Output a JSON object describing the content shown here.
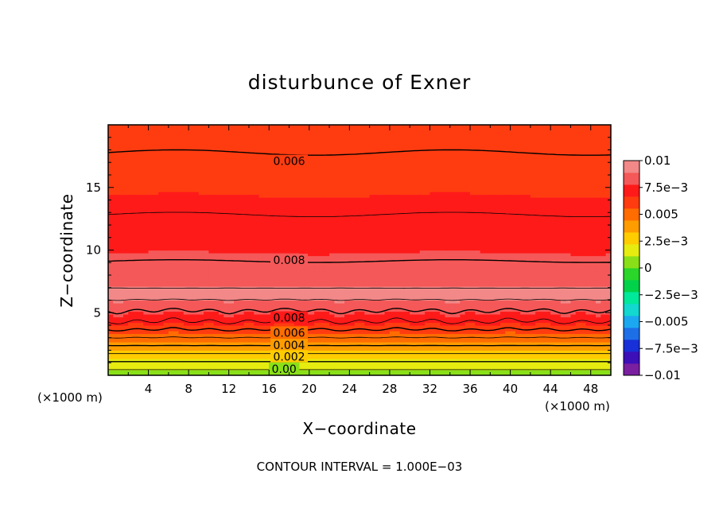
{
  "chart_data": {
    "type": "contour",
    "title": "disturbunce of Exner",
    "xlabel": "X−coordinate",
    "ylabel": "Z−coordinate",
    "x_unit_left": "(×1000 m)",
    "x_unit_right": "(×1000 m)",
    "footer": "CONTOUR INTERVAL = 1.000E−03",
    "xlim": [
      0,
      50
    ],
    "ylim": [
      0,
      20
    ],
    "x_ticks": [
      {
        "value": 4,
        "label": "4"
      },
      {
        "value": 8,
        "label": "8"
      },
      {
        "value": 12,
        "label": "12"
      },
      {
        "value": 16,
        "label": "16"
      },
      {
        "value": 20,
        "label": "20"
      },
      {
        "value": 24,
        "label": "24"
      },
      {
        "value": 28,
        "label": "28"
      },
      {
        "value": 32,
        "label": "32"
      },
      {
        "value": 36,
        "label": "36"
      },
      {
        "value": 40,
        "label": "40"
      },
      {
        "value": 44,
        "label": "44"
      },
      {
        "value": 48,
        "label": "48"
      }
    ],
    "y_ticks": [
      {
        "value": 5,
        "label": "5"
      },
      {
        "value": 10,
        "label": "10"
      },
      {
        "value": 15,
        "label": "15"
      }
    ],
    "contour_interval": 0.001,
    "contour_labels": [
      {
        "text": "0.006",
        "x": 18,
        "z": 17.1
      },
      {
        "text": "0.008",
        "x": 18,
        "z": 9.2
      },
      {
        "text": "0.008",
        "x": 18,
        "z": 4.6
      },
      {
        "text": "0.006",
        "x": 18,
        "z": 3.4
      },
      {
        "text": "0.004",
        "x": 18,
        "z": 2.4
      },
      {
        "text": "0.002",
        "x": 18,
        "z": 1.5
      },
      {
        "text": "0.00",
        "x": 17.5,
        "z": 0.5
      }
    ],
    "colorbar": {
      "range": [
        -0.01,
        0.01
      ],
      "colors": [
        "#7a1fa0",
        "#3c0fb8",
        "#1830d8",
        "#1d6fe8",
        "#1ba8f0",
        "#12d8d0",
        "#00e89a",
        "#00d24a",
        "#2ad62a",
        "#8ae018",
        "#e6ec10",
        "#ffcc00",
        "#ff9c00",
        "#ff6d00",
        "#ff3c10",
        "#ff1a1a",
        "#f55858",
        "#f28888"
      ],
      "tick_labels": [
        {
          "value": 0.01,
          "label": "0.01"
        },
        {
          "value": 0.0075,
          "label": "7.5e−3"
        },
        {
          "value": 0.005,
          "label": "0.005"
        },
        {
          "value": 0.0025,
          "label": "2.5e−3"
        },
        {
          "value": 0,
          "label": "0"
        },
        {
          "value": -0.0025,
          "label": "−2.5e−3"
        },
        {
          "value": -0.005,
          "label": "−0.005"
        },
        {
          "value": -0.0075,
          "label": "−7.5e−3"
        },
        {
          "value": -0.01,
          "label": "−0.01"
        }
      ]
    }
  }
}
